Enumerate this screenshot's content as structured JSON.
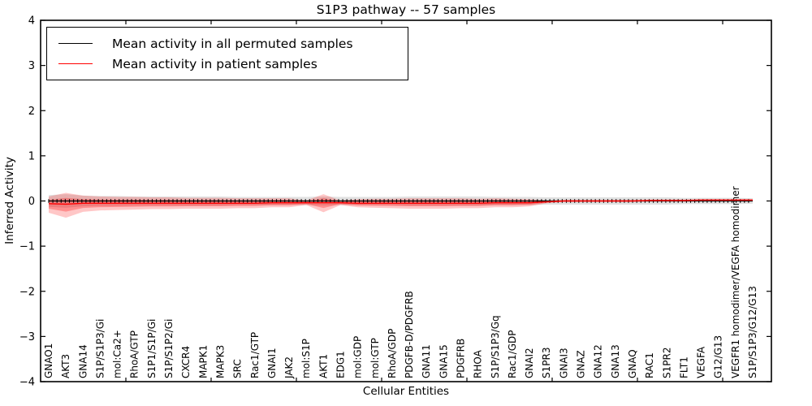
{
  "chart_data": {
    "type": "line",
    "title": "S1P3 pathway -- 57 samples",
    "xlabel": "Cellular Entities",
    "ylabel": "Inferred Activity",
    "ylim": [
      -4,
      4
    ],
    "ytick_labels": [
      "4",
      "3",
      "2",
      "1",
      "0",
      "−1",
      "−2",
      "−3",
      "−4"
    ],
    "grid": false,
    "legend_position": "upper left",
    "categories": [
      "GNAO1",
      "AKT3",
      "GNA14",
      "S1P/S1P3/Gi",
      "mol:Ca2+",
      "RhoA/GTP",
      "S1P1/S1P/Gi",
      "S1P/S1P2/Gi",
      "CXCR4",
      "MAPK1",
      "MAPK3",
      "SRC",
      "Rac1/GTP",
      "GNAI1",
      "JAK2",
      "mol:S1P",
      "AKT1",
      "EDG1",
      "mol:GDP",
      "mol:GTP",
      "RhoA/GDP",
      "PDGFB-D/PDGFRB",
      "GNA11",
      "GNA15",
      "PDGFRB",
      "RHOA",
      "S1P/S1P3/Gq",
      "Rac1/GDP",
      "GNAI2",
      "S1PR3",
      "GNAI3",
      "GNAZ",
      "GNA12",
      "GNA13",
      "GNAQ",
      "RAC1",
      "S1PR2",
      "FLT1",
      "VEGFA",
      "G12/G13",
      "VEGFR1 homodimer/VEGFA homodimer",
      "S1P/S1P3/G12/G13"
    ],
    "series": [
      {
        "name": "Mean activity in all permuted samples",
        "color": "#000000",
        "style": "ticked-line",
        "values": [
          0,
          0,
          0,
          0,
          0,
          0,
          0,
          0,
          0,
          0,
          0,
          0,
          0,
          0,
          0,
          0,
          0,
          0,
          0,
          0,
          0,
          0,
          0,
          0,
          0,
          0,
          0,
          0,
          0,
          0,
          0,
          0,
          0,
          0,
          0,
          0,
          0,
          0,
          0,
          0,
          0,
          0
        ],
        "band_upper": [
          0.13,
          0.15,
          0.12,
          0.11,
          0.11,
          0.1,
          0.1,
          0.1,
          0.1,
          0.1,
          0.1,
          0.09,
          0.09,
          0.09,
          0.09,
          0.09,
          0.1,
          0.09,
          0.09,
          0.09,
          0.09,
          0.1,
          0.1,
          0.1,
          0.1,
          0.1,
          0.09,
          0.09,
          0.09,
          0.08,
          0.08,
          0.08,
          0.08,
          0.08,
          0.08,
          0.08,
          0.08,
          0.07,
          0.07,
          0.07,
          0.07,
          0.06
        ],
        "band_lower": [
          0.13,
          0.15,
          0.12,
          0.11,
          0.11,
          0.1,
          0.1,
          0.1,
          0.1,
          0.1,
          0.1,
          0.09,
          0.09,
          0.09,
          0.09,
          0.09,
          0.1,
          0.09,
          0.09,
          0.09,
          0.09,
          0.1,
          0.1,
          0.1,
          0.1,
          0.1,
          0.09,
          0.09,
          0.09,
          0.08,
          0.08,
          0.08,
          0.08,
          0.08,
          0.08,
          0.08,
          0.08,
          0.07,
          0.07,
          0.07,
          0.07,
          0.06
        ],
        "band_color": "#000000",
        "band_opacity": 0.12
      },
      {
        "name": "Mean activity in patient samples",
        "color": "#ff0000",
        "style": "solid-line",
        "values": [
          -0.06,
          -0.07,
          -0.05,
          -0.05,
          -0.05,
          -0.05,
          -0.05,
          -0.05,
          -0.05,
          -0.05,
          -0.05,
          -0.05,
          -0.05,
          -0.04,
          -0.04,
          -0.04,
          -0.04,
          -0.04,
          -0.05,
          -0.05,
          -0.05,
          -0.05,
          -0.05,
          -0.05,
          -0.05,
          -0.05,
          -0.04,
          -0.04,
          -0.04,
          -0.02,
          0,
          0,
          0,
          0,
          0,
          0.01,
          0.01,
          0.01,
          0.02,
          0.02,
          0.02,
          0.02
        ],
        "band_upper": [
          0.16,
          0.25,
          0.17,
          0.15,
          0.14,
          0.14,
          0.13,
          0.13,
          0.12,
          0.12,
          0.12,
          0.11,
          0.11,
          0.1,
          0.1,
          0.05,
          0.19,
          0.05,
          0.09,
          0.1,
          0.1,
          0.11,
          0.11,
          0.11,
          0.11,
          0.1,
          0.1,
          0.09,
          0.08,
          0.03,
          0.02,
          0.02,
          0.02,
          0.02,
          0.02,
          0.02,
          0.02,
          0.02,
          0.02,
          0.02,
          0.02,
          0.02
        ],
        "band_lower": [
          0.2,
          0.3,
          0.19,
          0.16,
          0.15,
          0.14,
          0.13,
          0.13,
          0.12,
          0.12,
          0.12,
          0.11,
          0.11,
          0.1,
          0.1,
          0.05,
          0.21,
          0.05,
          0.09,
          0.1,
          0.11,
          0.12,
          0.12,
          0.12,
          0.11,
          0.11,
          0.1,
          0.1,
          0.08,
          0.03,
          0.02,
          0.02,
          0.02,
          0.02,
          0.02,
          0.02,
          0.02,
          0.02,
          0.02,
          0.02,
          0.02,
          0.02
        ],
        "band_color": "#ff0000",
        "band_opacity": 0.22
      }
    ]
  }
}
